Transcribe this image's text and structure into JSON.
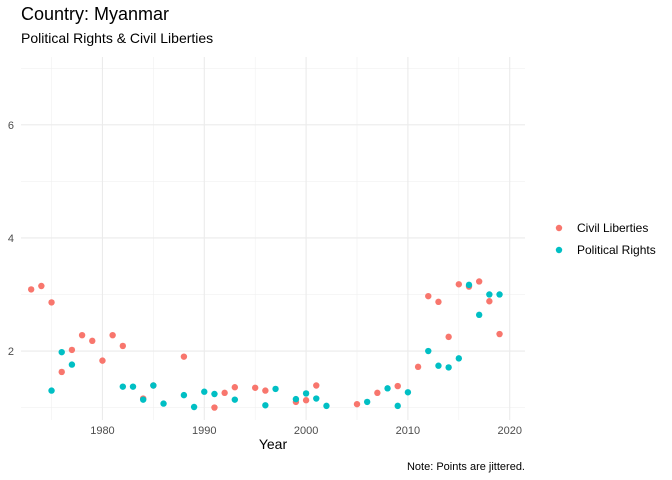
{
  "chart_data": {
    "type": "scatter",
    "title": "Country: Myanmar",
    "subtitle": "Political Rights & Civil Liberties",
    "xlabel": "Year",
    "ylabel": "",
    "caption": "Note: Points are jittered.",
    "xlim": [
      1972,
      2021.5
    ],
    "ylim": [
      0.78,
      7.2
    ],
    "x_ticks": [
      1980,
      1990,
      2000,
      2010,
      2020
    ],
    "y_ticks": [
      2,
      4,
      6
    ],
    "grid": true,
    "legend_position": "right",
    "series": [
      {
        "name": "Civil Liberties",
        "color": "#F8766D",
        "points": [
          [
            1973,
            3.09
          ],
          [
            1974,
            3.15
          ],
          [
            1975,
            2.86
          ],
          [
            1976,
            1.63
          ],
          [
            1977,
            2.02
          ],
          [
            1978,
            2.28
          ],
          [
            1979,
            2.18
          ],
          [
            1980,
            1.83
          ],
          [
            1981,
            2.28
          ],
          [
            1982,
            2.09
          ],
          [
            1984,
            1.16
          ],
          [
            1985,
            1.39
          ],
          [
            1988,
            1.9
          ],
          [
            1991,
            1.0
          ],
          [
            1992,
            1.26
          ],
          [
            1993,
            1.36
          ],
          [
            1995,
            1.35
          ],
          [
            1996,
            1.3
          ],
          [
            1999,
            1.1
          ],
          [
            2000,
            1.13
          ],
          [
            2001,
            1.39
          ],
          [
            2005,
            1.06
          ],
          [
            2007,
            1.26
          ],
          [
            2009,
            1.38
          ],
          [
            2011,
            1.72
          ],
          [
            2012,
            2.97
          ],
          [
            2013,
            2.87
          ],
          [
            2014,
            2.25
          ],
          [
            2015,
            3.18
          ],
          [
            2016,
            3.14
          ],
          [
            2017,
            3.23
          ],
          [
            2018,
            2.88
          ],
          [
            2019,
            2.3
          ]
        ]
      },
      {
        "name": "Political Rights",
        "color": "#00BFC4",
        "points": [
          [
            1975,
            1.3
          ],
          [
            1976,
            1.98
          ],
          [
            1977,
            1.76
          ],
          [
            1982,
            1.37
          ],
          [
            1983,
            1.37
          ],
          [
            1984,
            1.14
          ],
          [
            1985,
            1.39
          ],
          [
            1986,
            1.07
          ],
          [
            1988,
            1.22
          ],
          [
            1989,
            1.01
          ],
          [
            1990,
            1.28
          ],
          [
            1991,
            1.24
          ],
          [
            1993,
            1.14
          ],
          [
            1996,
            1.04
          ],
          [
            1997,
            1.33
          ],
          [
            1999,
            1.15
          ],
          [
            2000,
            1.25
          ],
          [
            2001,
            1.16
          ],
          [
            2002,
            1.03
          ],
          [
            2006,
            1.1
          ],
          [
            2008,
            1.34
          ],
          [
            2009,
            1.03
          ],
          [
            2010,
            1.27
          ],
          [
            2012,
            2.0
          ],
          [
            2013,
            1.74
          ],
          [
            2014,
            1.71
          ],
          [
            2015,
            1.87
          ],
          [
            2016,
            3.17
          ],
          [
            2017,
            2.64
          ],
          [
            2018,
            3.0
          ],
          [
            2019,
            3.0
          ]
        ]
      }
    ]
  }
}
